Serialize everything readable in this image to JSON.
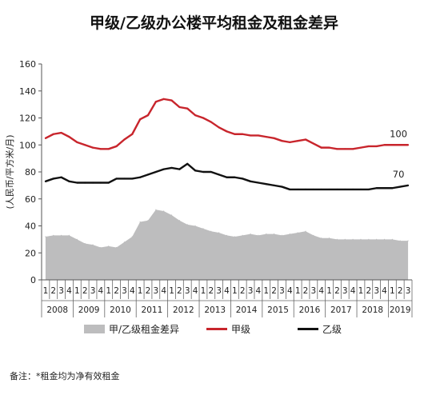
{
  "chart_data": {
    "type": "line",
    "title": "甲级/乙级办公楼平均租金及租金差异",
    "ylabel": "(人民币/平方米/月)",
    "ylim": [
      0,
      160
    ],
    "yticks": [
      "0",
      "20",
      "40",
      "60",
      "80",
      "100",
      "120",
      "140",
      "160"
    ],
    "quarter_labels": [
      "1",
      "2",
      "3",
      "4",
      "1",
      "2",
      "3",
      "4",
      "1",
      "2",
      "3",
      "4",
      "1",
      "2",
      "3",
      "4",
      "1",
      "2",
      "3",
      "4",
      "1",
      "2",
      "3",
      "4",
      "1",
      "2",
      "3",
      "4",
      "1",
      "2",
      "3",
      "4",
      "1",
      "2",
      "3",
      "4",
      "1",
      "2",
      "3",
      "4",
      "1",
      "2",
      "3",
      "4",
      "1",
      "2",
      "3"
    ],
    "years": [
      "2008",
      "2009",
      "2010",
      "2011",
      "2012",
      "2013",
      "2014",
      "2015",
      "2016",
      "2017",
      "2018",
      "2019"
    ],
    "series": [
      {
        "name": "甲/乙级租金差异",
        "kind": "area",
        "color": "#bdbdbe",
        "values": [
          32,
          33,
          33,
          33,
          30,
          27,
          26,
          24,
          25,
          24,
          28,
          32,
          43,
          44,
          52,
          51,
          48,
          44,
          41,
          40,
          38,
          36,
          35,
          33,
          32,
          33,
          34,
          33,
          34,
          34,
          33,
          34,
          35,
          36,
          33,
          31,
          31,
          30,
          30,
          30,
          30,
          30,
          30,
          30,
          30,
          29,
          29
        ]
      },
      {
        "name": "甲级",
        "kind": "line",
        "color": "#c8252c",
        "values": [
          105,
          108,
          109,
          106,
          102,
          100,
          98,
          97,
          97,
          99,
          104,
          108,
          119,
          122,
          132,
          134,
          133,
          128,
          127,
          122,
          120,
          117,
          113,
          110,
          108,
          108,
          107,
          107,
          106,
          105,
          103,
          102,
          103,
          104,
          101,
          98,
          98,
          97,
          97,
          97,
          98,
          99,
          99,
          100,
          100,
          100,
          100
        ],
        "end_label": "100"
      },
      {
        "name": "乙级",
        "kind": "line",
        "color": "#111111",
        "values": [
          73,
          75,
          76,
          73,
          72,
          72,
          72,
          72,
          72,
          75,
          75,
          75,
          76,
          78,
          80,
          82,
          83,
          82,
          86,
          81,
          80,
          80,
          78,
          76,
          76,
          75,
          73,
          72,
          71,
          70,
          69,
          67,
          67,
          67,
          67,
          67,
          67,
          67,
          67,
          67,
          67,
          67,
          68,
          68,
          68,
          69,
          70
        ],
        "end_label": "70"
      }
    ],
    "legend_position": "bottom"
  },
  "footnote": "备注：*租金均为净有效租金"
}
